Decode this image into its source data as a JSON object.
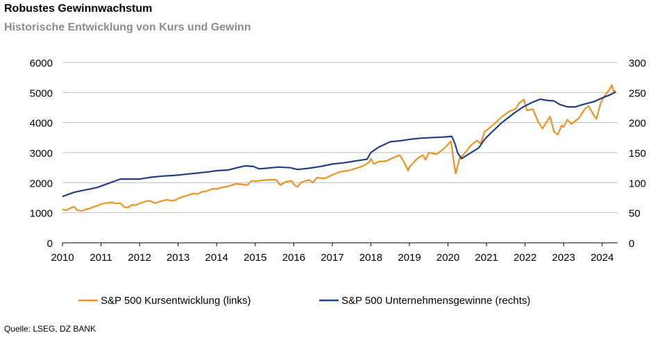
{
  "title": "Robustes Gewinnwachstum",
  "subtitle": "Historische Entwicklung von Kurs und Gewinn",
  "source": "Quelle: LSEG, DZ BANK",
  "chart_data": {
    "type": "line",
    "y_left": {
      "min": 0,
      "max": 6000,
      "ticks": [
        0,
        1000,
        2000,
        3000,
        4000,
        5000,
        6000
      ]
    },
    "y_right": {
      "min": 0,
      "max": 300,
      "ticks": [
        0,
        50,
        100,
        150,
        200,
        250,
        300
      ]
    },
    "x": {
      "min": 2010,
      "max": 2024.4,
      "ticks": [
        2010,
        2011,
        2012,
        2013,
        2014,
        2015,
        2016,
        2017,
        2018,
        2019,
        2020,
        2021,
        2022,
        2023,
        2024
      ]
    },
    "grid": "horizontal",
    "legend": "bottom",
    "series": [
      {
        "name": "S&P 500 Kursentwicklung (links)",
        "axis": "left",
        "color": "#f0901e",
        "points": [
          [
            2010.0,
            1115
          ],
          [
            2010.1,
            1080
          ],
          [
            2010.2,
            1150
          ],
          [
            2010.3,
            1200
          ],
          [
            2010.38,
            1090
          ],
          [
            2010.5,
            1060
          ],
          [
            2010.6,
            1110
          ],
          [
            2010.7,
            1140
          ],
          [
            2010.8,
            1190
          ],
          [
            2010.9,
            1230
          ],
          [
            2011.0,
            1280
          ],
          [
            2011.1,
            1320
          ],
          [
            2011.2,
            1330
          ],
          [
            2011.3,
            1340
          ],
          [
            2011.4,
            1310
          ],
          [
            2011.5,
            1320
          ],
          [
            2011.6,
            1190
          ],
          [
            2011.7,
            1170
          ],
          [
            2011.8,
            1260
          ],
          [
            2011.9,
            1250
          ],
          [
            2012.0,
            1310
          ],
          [
            2012.15,
            1370
          ],
          [
            2012.25,
            1400
          ],
          [
            2012.4,
            1320
          ],
          [
            2012.5,
            1360
          ],
          [
            2012.7,
            1430
          ],
          [
            2012.85,
            1400
          ],
          [
            2012.95,
            1430
          ],
          [
            2013.0,
            1480
          ],
          [
            2013.2,
            1560
          ],
          [
            2013.4,
            1640
          ],
          [
            2013.5,
            1620
          ],
          [
            2013.6,
            1690
          ],
          [
            2013.75,
            1720
          ],
          [
            2013.9,
            1800
          ],
          [
            2014.0,
            1790
          ],
          [
            2014.1,
            1830
          ],
          [
            2014.3,
            1880
          ],
          [
            2014.5,
            1960
          ],
          [
            2014.6,
            1950
          ],
          [
            2014.8,
            1920
          ],
          [
            2014.9,
            2060
          ],
          [
            2015.0,
            2050
          ],
          [
            2015.2,
            2080
          ],
          [
            2015.4,
            2100
          ],
          [
            2015.55,
            2090
          ],
          [
            2015.65,
            1920
          ],
          [
            2015.8,
            2030
          ],
          [
            2015.95,
            2060
          ],
          [
            2016.0,
            1940
          ],
          [
            2016.1,
            1860
          ],
          [
            2016.2,
            2020
          ],
          [
            2016.4,
            2090
          ],
          [
            2016.5,
            2000
          ],
          [
            2016.6,
            2170
          ],
          [
            2016.8,
            2140
          ],
          [
            2016.9,
            2200
          ],
          [
            2017.0,
            2260
          ],
          [
            2017.2,
            2360
          ],
          [
            2017.4,
            2400
          ],
          [
            2017.6,
            2470
          ],
          [
            2017.8,
            2560
          ],
          [
            2017.95,
            2680
          ],
          [
            2018.0,
            2800
          ],
          [
            2018.08,
            2620
          ],
          [
            2018.2,
            2700
          ],
          [
            2018.4,
            2720
          ],
          [
            2018.6,
            2840
          ],
          [
            2018.75,
            2920
          ],
          [
            2018.85,
            2710
          ],
          [
            2018.97,
            2400
          ],
          [
            2019.0,
            2520
          ],
          [
            2019.2,
            2800
          ],
          [
            2019.35,
            2920
          ],
          [
            2019.42,
            2760
          ],
          [
            2019.5,
            3000
          ],
          [
            2019.7,
            2950
          ],
          [
            2019.85,
            3080
          ],
          [
            2019.97,
            3230
          ],
          [
            2020.08,
            3380
          ],
          [
            2020.14,
            2800
          ],
          [
            2020.2,
            2300
          ],
          [
            2020.3,
            2800
          ],
          [
            2020.45,
            3000
          ],
          [
            2020.6,
            3250
          ],
          [
            2020.75,
            3400
          ],
          [
            2020.85,
            3300
          ],
          [
            2020.95,
            3700
          ],
          [
            2021.0,
            3740
          ],
          [
            2021.2,
            3950
          ],
          [
            2021.4,
            4200
          ],
          [
            2021.6,
            4380
          ],
          [
            2021.75,
            4450
          ],
          [
            2021.85,
            4650
          ],
          [
            2021.97,
            4770
          ],
          [
            2022.05,
            4400
          ],
          [
            2022.2,
            4450
          ],
          [
            2022.35,
            4000
          ],
          [
            2022.45,
            3800
          ],
          [
            2022.55,
            4000
          ],
          [
            2022.65,
            4200
          ],
          [
            2022.75,
            3700
          ],
          [
            2022.85,
            3600
          ],
          [
            2022.95,
            3900
          ],
          [
            2023.0,
            3850
          ],
          [
            2023.1,
            4100
          ],
          [
            2023.2,
            3950
          ],
          [
            2023.4,
            4150
          ],
          [
            2023.55,
            4450
          ],
          [
            2023.65,
            4550
          ],
          [
            2023.8,
            4200
          ],
          [
            2023.85,
            4120
          ],
          [
            2023.95,
            4600
          ],
          [
            2024.0,
            4750
          ],
          [
            2024.1,
            4950
          ],
          [
            2024.2,
            5120
          ],
          [
            2024.25,
            5250
          ],
          [
            2024.3,
            5020
          ],
          [
            2024.35,
            5070
          ]
        ]
      },
      {
        "name": "S&P 500 Unternehmensgewinne (rechts)",
        "axis": "right",
        "color": "#1f3d8a",
        "points": [
          [
            2010.0,
            77
          ],
          [
            2010.3,
            84
          ],
          [
            2010.6,
            88
          ],
          [
            2010.9,
            92
          ],
          [
            2011.2,
            99
          ],
          [
            2011.5,
            106
          ],
          [
            2011.8,
            106
          ],
          [
            2012.0,
            106
          ],
          [
            2012.3,
            109
          ],
          [
            2012.6,
            111
          ],
          [
            2012.9,
            112
          ],
          [
            2013.2,
            114
          ],
          [
            2013.5,
            116
          ],
          [
            2013.8,
            118
          ],
          [
            2014.0,
            120
          ],
          [
            2014.3,
            121
          ],
          [
            2014.6,
            126
          ],
          [
            2014.75,
            128
          ],
          [
            2014.95,
            127
          ],
          [
            2015.1,
            123
          ],
          [
            2015.3,
            124
          ],
          [
            2015.6,
            126
          ],
          [
            2015.9,
            125
          ],
          [
            2016.1,
            122
          ],
          [
            2016.4,
            124
          ],
          [
            2016.7,
            127
          ],
          [
            2017.0,
            131
          ],
          [
            2017.3,
            133
          ],
          [
            2017.6,
            136
          ],
          [
            2017.9,
            139
          ],
          [
            2018.0,
            150
          ],
          [
            2018.2,
            159
          ],
          [
            2018.5,
            168
          ],
          [
            2018.8,
            170
          ],
          [
            2019.0,
            172
          ],
          [
            2019.3,
            174
          ],
          [
            2019.6,
            175
          ],
          [
            2019.9,
            176
          ],
          [
            2020.1,
            177
          ],
          [
            2020.18,
            165
          ],
          [
            2020.25,
            150
          ],
          [
            2020.35,
            140
          ],
          [
            2020.5,
            146
          ],
          [
            2020.8,
            158
          ],
          [
            2020.95,
            172
          ],
          [
            2021.1,
            182
          ],
          [
            2021.4,
            200
          ],
          [
            2021.7,
            215
          ],
          [
            2021.95,
            226
          ],
          [
            2022.2,
            234
          ],
          [
            2022.4,
            239
          ],
          [
            2022.55,
            237
          ],
          [
            2022.75,
            236
          ],
          [
            2022.9,
            230
          ],
          [
            2023.1,
            226
          ],
          [
            2023.3,
            226
          ],
          [
            2023.5,
            230
          ],
          [
            2023.8,
            235
          ],
          [
            2024.0,
            241
          ],
          [
            2024.2,
            246
          ],
          [
            2024.35,
            251
          ]
        ]
      }
    ]
  }
}
